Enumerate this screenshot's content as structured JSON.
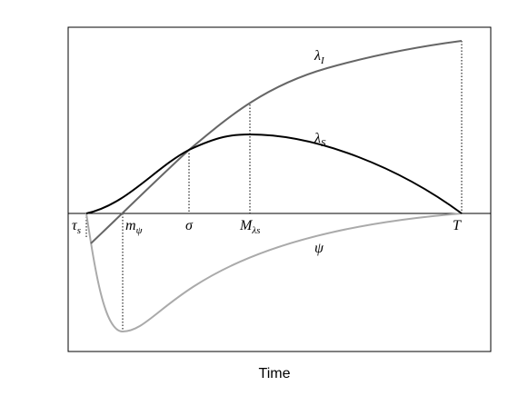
{
  "x_label": "Time",
  "curves": [
    {
      "main": "λ",
      "sub": "I"
    },
    {
      "main": "λ",
      "sub": "S"
    },
    {
      "main": "ψ"
    }
  ],
  "markers": [
    {
      "main": "τ",
      "sub": "s"
    },
    {
      "main": "m",
      "sub": "ψ"
    },
    {
      "main": "σ"
    },
    {
      "main": "M",
      "sub": "λs"
    },
    {
      "main": "T"
    }
  ]
}
